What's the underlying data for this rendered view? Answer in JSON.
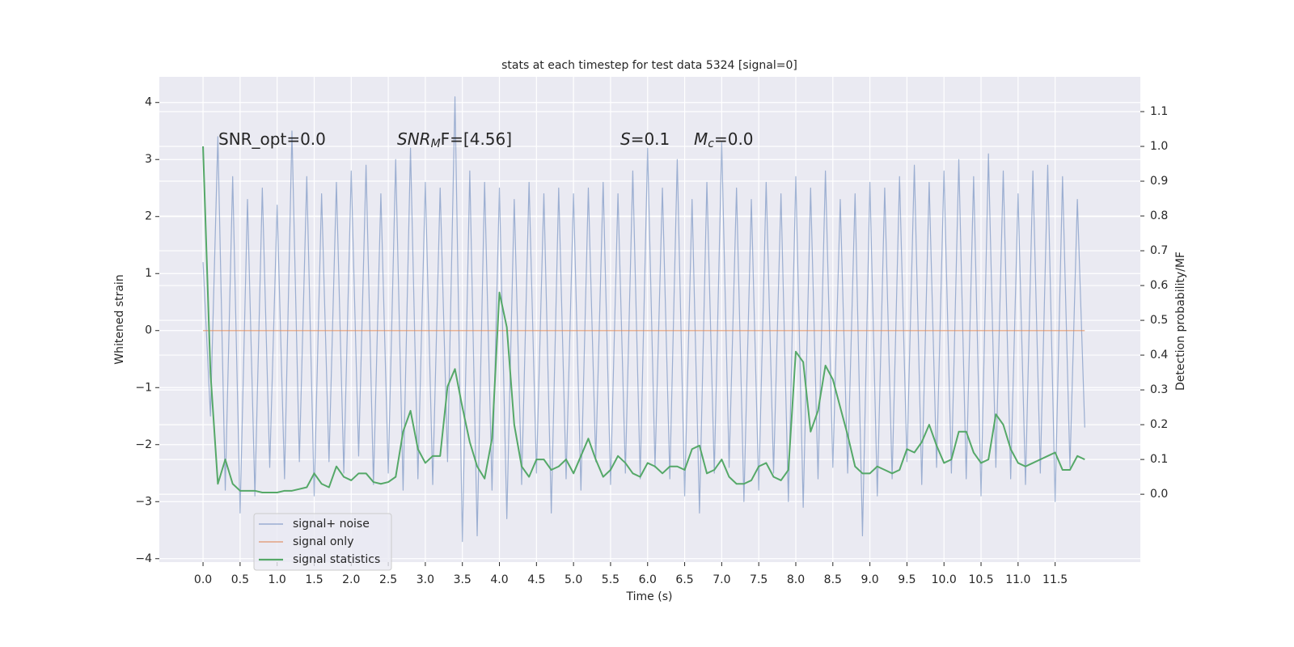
{
  "chart_data": {
    "type": "line",
    "title": "stats at each timestep for test data 5324 [signal=0]",
    "xlabel": "Time (s)",
    "ylabel": "Whitened strain",
    "y2label": "Detection probability/MF",
    "annotations": [
      {
        "text": "SNR_opt=0.0"
      },
      {
        "symbol": "SNR",
        "subscript": "M",
        "text": "F=[4.56]"
      },
      {
        "symbol": "S",
        "text": "=0.1"
      },
      {
        "symbol": "M",
        "subscript": "c",
        "text": "=0.0"
      }
    ],
    "grid": true,
    "legend": "lower left",
    "background": "#eaeaf2",
    "xlim": [
      -0.59,
      12.65
    ],
    "ylim": [
      -4.06,
      4.45
    ],
    "y2lim": [
      -0.195,
      1.2
    ],
    "xticks": [
      {
        "value": 0,
        "label": "0.0"
      },
      0.5,
      {
        "value": 1,
        "label": "1.0"
      },
      1.5,
      {
        "value": 2,
        "label": "2.0"
      },
      2.5,
      {
        "value": 3,
        "label": "3.0"
      },
      3.5,
      {
        "value": 4,
        "label": "4.0"
      },
      4.5,
      {
        "value": 5,
        "label": "5.0"
      },
      5.5,
      {
        "value": 6,
        "label": "6.0"
      },
      6.5,
      {
        "value": 7,
        "label": "7.0"
      },
      7.5,
      {
        "value": 8,
        "label": "8.0"
      },
      8.5,
      {
        "value": 9,
        "label": "9.0"
      },
      9.5,
      {
        "value": 10,
        "label": "10.0"
      },
      10.5,
      {
        "value": 11,
        "label": "11.0"
      },
      11.5
    ],
    "yticks": [
      {
        "value": -4,
        "label": "−4"
      },
      {
        "value": -3,
        "label": "−3"
      },
      {
        "value": -2,
        "label": "−2"
      },
      {
        "value": -1,
        "label": "−1"
      },
      0,
      1,
      2,
      3,
      4
    ],
    "y2ticks": [
      {
        "value": 0,
        "label": "0.0"
      },
      0.1,
      0.2,
      0.3,
      0.4,
      0.5,
      0.6,
      0.7,
      0.8,
      0.9,
      {
        "value": 1,
        "label": "1.0"
      },
      1.1
    ],
    "x": [
      0,
      0.1,
      0.2,
      0.3,
      0.4,
      0.5,
      0.6,
      0.7,
      0.8,
      0.9,
      1,
      1.1,
      1.2,
      1.3,
      1.4,
      1.5,
      1.6,
      1.7,
      1.8,
      1.9,
      2,
      2.1,
      2.2,
      2.3,
      2.4,
      2.5,
      2.6,
      2.7,
      2.8,
      2.9,
      3,
      3.1,
      3.2,
      3.3,
      3.4,
      3.5,
      3.6,
      3.7,
      3.8,
      3.9,
      4,
      4.1,
      4.2,
      4.3,
      4.4,
      4.5,
      4.6,
      4.7,
      4.8,
      4.9,
      5,
      5.1,
      5.2,
      5.3,
      5.4,
      5.5,
      5.6,
      5.7,
      5.8,
      5.9,
      6,
      6.1,
      6.2,
      6.3,
      6.4,
      6.5,
      6.6,
      6.7,
      6.8,
      6.9,
      7,
      7.1,
      7.2,
      7.3,
      7.4,
      7.5,
      7.6,
      7.7,
      7.8,
      7.9,
      8,
      8.1,
      8.2,
      8.3,
      8.4,
      8.5,
      8.6,
      8.7,
      8.8,
      8.9,
      9,
      9.1,
      9.2,
      9.3,
      9.4,
      9.5,
      9.6,
      9.7,
      9.8,
      9.9,
      10,
      10.1,
      10.2,
      10.3,
      10.4,
      10.5,
      10.6,
      10.7,
      10.8,
      10.9,
      11,
      11.1,
      11.2,
      11.3,
      11.4,
      11.5,
      11.6,
      11.7,
      11.8,
      11.9
    ],
    "series": [
      {
        "name": "signal+ noise",
        "color": "#4c72b0",
        "axis": "y",
        "values": [
          1.2,
          -1.5,
          3.4,
          -2.8,
          2.7,
          -3.2,
          2.3,
          -2.9,
          2.5,
          -2.4,
          2.2,
          -2.6,
          3.5,
          -2.3,
          2.7,
          -2.9,
          2.4,
          -2.3,
          2.6,
          -2.5,
          2.8,
          -2.2,
          2.9,
          -2.7,
          2.4,
          -2.5,
          3.0,
          -2.8,
          3.2,
          -2.6,
          2.6,
          -2.7,
          2.5,
          -2.3,
          4.1,
          -3.7,
          2.8,
          -3.6,
          2.6,
          -2.8,
          2.5,
          -3.3,
          2.3,
          -2.7,
          2.6,
          -2.5,
          2.4,
          -3.2,
          2.5,
          -2.6,
          2.4,
          -2.8,
          2.5,
          -2.3,
          2.6,
          -2.7,
          2.4,
          -2.5,
          2.8,
          -2.6,
          3.2,
          -2.4,
          2.5,
          -2.6,
          3.0,
          -2.9,
          2.3,
          -3.2,
          2.6,
          -2.5,
          3.3,
          -2.4,
          2.5,
          -3.0,
          2.3,
          -2.8,
          2.6,
          -2.5,
          2.4,
          -3.0,
          2.7,
          -3.1,
          2.5,
          -2.6,
          2.8,
          -2.4,
          2.3,
          -2.5,
          2.4,
          -3.6,
          2.6,
          -2.9,
          2.5,
          -2.6,
          2.7,
          -2.3,
          2.9,
          -2.7,
          2.6,
          -2.4,
          2.8,
          -2.5,
          3.0,
          -2.6,
          2.7,
          -2.9,
          3.1,
          -2.4,
          2.8,
          -2.6,
          2.4,
          -2.7,
          2.8,
          -2.5,
          2.9,
          -3.0,
          2.7,
          -2.4,
          2.3,
          -1.7
        ]
      },
      {
        "name": "signal only",
        "color": "#dd8452",
        "axis": "y",
        "values": [
          0,
          0,
          0,
          0,
          0,
          0,
          0,
          0,
          0,
          0,
          0,
          0,
          0,
          0,
          0,
          0,
          0,
          0,
          0,
          0,
          0,
          0,
          0,
          0,
          0,
          0,
          0,
          0,
          0,
          0,
          0,
          0,
          0,
          0,
          0,
          0,
          0,
          0,
          0,
          0,
          0,
          0,
          0,
          0,
          0,
          0,
          0,
          0,
          0,
          0,
          0,
          0,
          0,
          0,
          0,
          0,
          0,
          0,
          0,
          0,
          0,
          0,
          0,
          0,
          0,
          0,
          0,
          0,
          0,
          0,
          0,
          0,
          0,
          0,
          0,
          0,
          0,
          0,
          0,
          0,
          0,
          0,
          0,
          0,
          0,
          0,
          0,
          0,
          0,
          0,
          0,
          0,
          0,
          0,
          0,
          0,
          0,
          0,
          0,
          0,
          0,
          0,
          0,
          0,
          0,
          0,
          0,
          0,
          0,
          0,
          0,
          0,
          0,
          0,
          0,
          0,
          0,
          0,
          0,
          0
        ]
      },
      {
        "name": "signal statistics",
        "color": "#55a868",
        "axis": "y2",
        "values": [
          1.0,
          0.35,
          0.03,
          0.1,
          0.03,
          0.01,
          0.01,
          0.01,
          0.005,
          0.005,
          0.005,
          0.01,
          0.01,
          0.015,
          0.02,
          0.06,
          0.03,
          0.02,
          0.08,
          0.05,
          0.04,
          0.06,
          0.06,
          0.035,
          0.03,
          0.035,
          0.05,
          0.18,
          0.24,
          0.13,
          0.09,
          0.11,
          0.11,
          0.31,
          0.36,
          0.25,
          0.15,
          0.08,
          0.045,
          0.16,
          0.58,
          0.48,
          0.2,
          0.08,
          0.05,
          0.1,
          0.1,
          0.07,
          0.08,
          0.1,
          0.06,
          0.11,
          0.16,
          0.1,
          0.05,
          0.07,
          0.11,
          0.09,
          0.06,
          0.05,
          0.09,
          0.08,
          0.06,
          0.08,
          0.08,
          0.07,
          0.13,
          0.14,
          0.06,
          0.07,
          0.1,
          0.05,
          0.03,
          0.03,
          0.04,
          0.08,
          0.09,
          0.05,
          0.04,
          0.07,
          0.41,
          0.38,
          0.18,
          0.24,
          0.37,
          0.33,
          0.25,
          0.17,
          0.08,
          0.06,
          0.06,
          0.08,
          0.07,
          0.06,
          0.07,
          0.13,
          0.12,
          0.15,
          0.2,
          0.14,
          0.09,
          0.1,
          0.18,
          0.18,
          0.12,
          0.09,
          0.1,
          0.23,
          0.2,
          0.13,
          0.09,
          0.08,
          0.09,
          0.1,
          0.11,
          0.12,
          0.07,
          0.07,
          0.11,
          0.1
        ]
      }
    ]
  }
}
